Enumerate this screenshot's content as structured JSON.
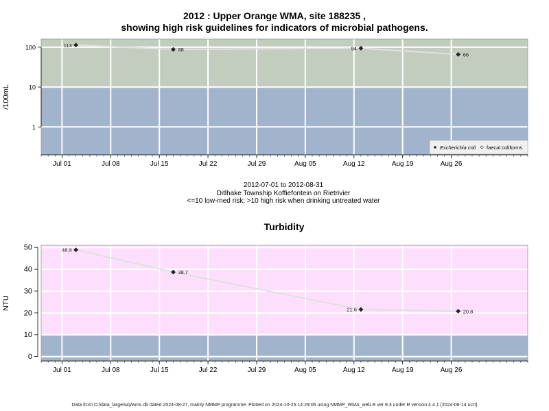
{
  "title_line1": "2012 : Upper Orange WMA, site 188235 ,",
  "title_line2": "showing high risk guidelines for indicators of microbial pathogens.",
  "info_line1": "2012-07-01 to 2012-08-31",
  "info_line2": "Ditlhake Township Koffiefontein on Rietrivier",
  "info_line3": "<=10 low-med risk; >10 high risk when drinking untreated water",
  "footer": "Data from D:/data_large/wq/wms.db dated 2024-08-27, mainly NMMP programme. Plotted on 2024-10-25 14:29:06 using NMMP_WMA_web.R ver 9.3 under R version 4.4.1 (2024-06-14 ucrt)",
  "colors": {
    "high_risk_band": "#c2cdc0",
    "low_risk_band": "#a2b4cc",
    "turbidity_band": "#fddffd",
    "grid": "#ffffff",
    "series_line": "#e0e0e0",
    "point": "#222222"
  },
  "chart_data": [
    {
      "type": "scatter",
      "title": "",
      "ylabel": "/100mL",
      "y_scale": "log",
      "ylim": [
        0.2,
        160
      ],
      "x_range": [
        "2012-06-28",
        "2012-09-06"
      ],
      "y_ticks": [
        1,
        10,
        100
      ],
      "y_tick_labels": [
        "1",
        "10",
        "100"
      ],
      "x_ticks": [
        "2012-07-01",
        "2012-07-08",
        "2012-07-15",
        "2012-07-22",
        "2012-07-29",
        "2012-08-05",
        "2012-08-12",
        "2012-08-19",
        "2012-08-26"
      ],
      "x_tick_labels": [
        "Jul 01",
        "Jul 08",
        "Jul 15",
        "Jul 22",
        "Jul 29",
        "Aug 05",
        "Aug 12",
        "Aug 19",
        "Aug 26"
      ],
      "threshold": 10,
      "legend_position": "bottom-right",
      "series": [
        {
          "name": "Escherichia coli",
          "marker": "filled-diamond",
          "x": [
            "2012-07-03",
            "2012-07-17",
            "2012-08-13",
            "2012-08-27"
          ],
          "y": [
            113,
            88,
            94,
            66
          ],
          "labels": [
            "113",
            "88",
            "94",
            "66"
          ],
          "label_side": [
            "left",
            "right",
            "left",
            "right"
          ]
        },
        {
          "name": "faecal coliforms",
          "marker": "open-diamond",
          "x": [],
          "y": []
        }
      ]
    },
    {
      "type": "scatter",
      "title": "Turbidity",
      "ylabel": "NTU",
      "ylim": [
        -2,
        51
      ],
      "x_range": [
        "2012-06-28",
        "2012-09-06"
      ],
      "y_ticks": [
        0,
        10,
        20,
        30,
        40,
        50
      ],
      "y_tick_labels": [
        "0",
        "10",
        "20",
        "30",
        "40",
        "50"
      ],
      "x_ticks": [
        "2012-07-01",
        "2012-07-08",
        "2012-07-15",
        "2012-07-22",
        "2012-07-29",
        "2012-08-05",
        "2012-08-12",
        "2012-08-19",
        "2012-08-26"
      ],
      "x_tick_labels": [
        "Jul 01",
        "Jul 08",
        "Jul 15",
        "Jul 22",
        "Jul 29",
        "Aug 05",
        "Aug 12",
        "Aug 19",
        "Aug 26"
      ],
      "threshold": 10,
      "series": [
        {
          "name": "",
          "marker": "filled-diamond",
          "x": [
            "2012-07-03",
            "2012-07-17",
            "2012-08-13",
            "2012-08-27"
          ],
          "y": [
            48.9,
            38.7,
            21.6,
            20.8
          ],
          "labels": [
            "48.9",
            "38.7",
            "21.6",
            "20.8"
          ],
          "label_side": [
            "left",
            "right",
            "left",
            "right"
          ]
        }
      ]
    }
  ]
}
